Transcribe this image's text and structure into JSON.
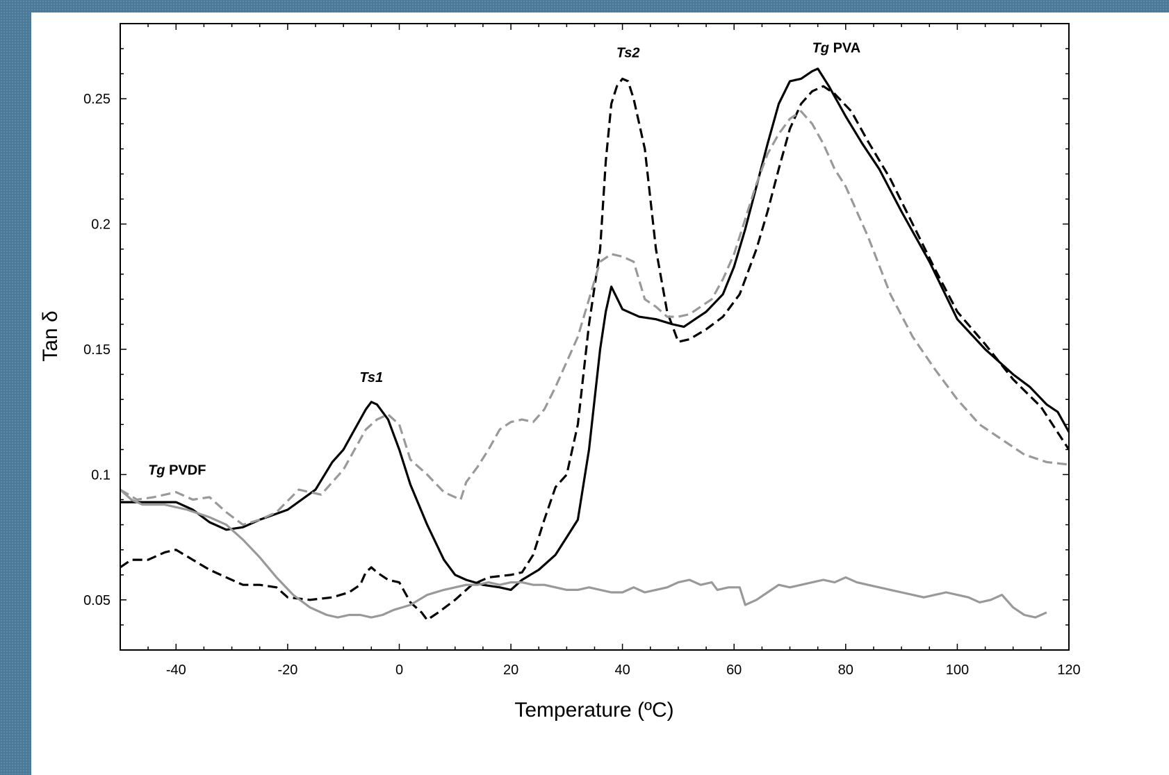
{
  "chart_data": {
    "type": "line",
    "title": "",
    "xlabel": "Temperature (ºC)",
    "ylabel": "Tan δ",
    "xlim": [
      -50,
      120
    ],
    "ylim": [
      0.03,
      0.28
    ],
    "xticks": [
      -40,
      -20,
      0,
      20,
      40,
      60,
      80,
      100,
      120
    ],
    "xtick_labels": [
      "-40",
      "-20",
      "0",
      "20",
      "40",
      "60",
      "80",
      "100",
      "120"
    ],
    "yticks": [
      0.05,
      0.1,
      0.15,
      0.2,
      0.25
    ],
    "ytick_labels": [
      "0.05",
      "0.1",
      "0.15",
      "0.2",
      "0.25"
    ],
    "grid": false,
    "legend": "none",
    "annotations": [
      {
        "italic": "Tg",
        "text": " PVDF",
        "x": -45,
        "y": 0.1
      },
      {
        "italic": "Ts1",
        "text": "",
        "x": -5,
        "y": 0.137
      },
      {
        "italic": "Ts2",
        "text": "",
        "x": 41,
        "y": 0.2665
      },
      {
        "italic": "Tg",
        "text": " PVA",
        "x": 74,
        "y": 0.2685
      }
    ],
    "series": [
      {
        "color": "#000000",
        "dash": "solid",
        "x": [
          -50,
          -45,
          -40,
          -37,
          -34,
          -31,
          -28,
          -25,
          -20,
          -15,
          -12,
          -10,
          -8,
          -6,
          -5,
          -4,
          -2,
          0,
          2,
          5,
          8,
          10,
          12,
          15,
          18,
          20,
          22,
          25,
          28,
          30,
          32,
          34,
          35,
          36,
          37,
          38,
          40,
          43,
          46,
          49,
          51,
          53,
          55,
          58,
          60,
          62,
          64,
          66,
          68,
          70,
          72,
          74,
          75,
          77,
          80,
          83,
          86,
          90,
          95,
          100,
          105,
          110,
          113,
          116,
          118,
          120
        ],
        "values": [
          0.089,
          0.089,
          0.089,
          0.086,
          0.081,
          0.078,
          0.079,
          0.082,
          0.086,
          0.094,
          0.105,
          0.11,
          0.118,
          0.126,
          0.129,
          0.128,
          0.122,
          0.11,
          0.096,
          0.08,
          0.066,
          0.06,
          0.058,
          0.056,
          0.055,
          0.054,
          0.058,
          0.062,
          0.068,
          0.075,
          0.082,
          0.11,
          0.13,
          0.15,
          0.165,
          0.175,
          0.166,
          0.163,
          0.162,
          0.16,
          0.159,
          0.162,
          0.165,
          0.172,
          0.183,
          0.198,
          0.215,
          0.232,
          0.248,
          0.257,
          0.258,
          0.261,
          0.262,
          0.255,
          0.243,
          0.232,
          0.222,
          0.205,
          0.185,
          0.162,
          0.15,
          0.14,
          0.135,
          0.128,
          0.125,
          0.117
        ]
      },
      {
        "color": "#000000",
        "dash": "dashed",
        "x": [
          -50,
          -48,
          -45,
          -42,
          -40,
          -37,
          -34,
          -31,
          -28,
          -25,
          -22,
          -20,
          -16,
          -12,
          -9,
          -7,
          -6,
          -5,
          -4,
          -2,
          0,
          2,
          4,
          5,
          7,
          10,
          13,
          16,
          20,
          22,
          24,
          26,
          28,
          30,
          32,
          34,
          36,
          37,
          38,
          39,
          40,
          41,
          42,
          44,
          46,
          48,
          50,
          52,
          55,
          58,
          61,
          64,
          66,
          68,
          70,
          72,
          74,
          76,
          78,
          81,
          84,
          88,
          92,
          96,
          100,
          105,
          110,
          115,
          120
        ],
        "values": [
          0.063,
          0.066,
          0.066,
          0.069,
          0.07,
          0.066,
          0.062,
          0.059,
          0.056,
          0.056,
          0.055,
          0.051,
          0.05,
          0.051,
          0.053,
          0.056,
          0.061,
          0.063,
          0.061,
          0.058,
          0.057,
          0.049,
          0.045,
          0.042,
          0.045,
          0.05,
          0.056,
          0.059,
          0.06,
          0.061,
          0.068,
          0.082,
          0.095,
          0.1,
          0.12,
          0.16,
          0.19,
          0.225,
          0.248,
          0.255,
          0.258,
          0.257,
          0.25,
          0.23,
          0.19,
          0.165,
          0.153,
          0.154,
          0.158,
          0.163,
          0.172,
          0.19,
          0.205,
          0.222,
          0.238,
          0.248,
          0.253,
          0.255,
          0.252,
          0.245,
          0.233,
          0.218,
          0.2,
          0.182,
          0.165,
          0.152,
          0.138,
          0.127,
          0.11
        ]
      },
      {
        "color": "#999999",
        "dash": "dashed",
        "x": [
          -50,
          -47,
          -44,
          -40,
          -37,
          -34,
          -31,
          -28,
          -25,
          -22,
          -18,
          -14,
          -10,
          -8,
          -6,
          -4,
          -2,
          0,
          2,
          5,
          8,
          10,
          11,
          12,
          14,
          16,
          18,
          20,
          22,
          24,
          26,
          28,
          30,
          32,
          34,
          36,
          38,
          40,
          42,
          44,
          46,
          48,
          50,
          52,
          54,
          56,
          58,
          60,
          62,
          64,
          66,
          68,
          70,
          72,
          74,
          76,
          78,
          80,
          84,
          88,
          92,
          96,
          100,
          104,
          108,
          112,
          116,
          120
        ],
        "values": [
          0.094,
          0.09,
          0.091,
          0.093,
          0.09,
          0.091,
          0.085,
          0.08,
          0.082,
          0.085,
          0.094,
          0.092,
          0.102,
          0.11,
          0.118,
          0.122,
          0.124,
          0.12,
          0.106,
          0.1,
          0.093,
          0.091,
          0.09,
          0.097,
          0.103,
          0.11,
          0.118,
          0.121,
          0.122,
          0.121,
          0.126,
          0.135,
          0.145,
          0.155,
          0.17,
          0.185,
          0.188,
          0.187,
          0.185,
          0.17,
          0.167,
          0.163,
          0.163,
          0.164,
          0.167,
          0.17,
          0.178,
          0.188,
          0.202,
          0.216,
          0.228,
          0.236,
          0.242,
          0.245,
          0.24,
          0.232,
          0.222,
          0.215,
          0.195,
          0.172,
          0.155,
          0.142,
          0.13,
          0.12,
          0.114,
          0.108,
          0.105,
          0.104
        ]
      },
      {
        "color": "#999999",
        "dash": "solid",
        "x": [
          -50,
          -48,
          -46,
          -42,
          -38,
          -34,
          -31,
          -28,
          -25,
          -22,
          -19,
          -16,
          -13,
          -11,
          -9,
          -7,
          -5,
          -3,
          -1,
          2,
          5,
          8,
          10,
          12,
          14,
          16,
          18,
          20,
          22,
          24,
          26,
          28,
          30,
          32,
          34,
          36,
          38,
          40,
          42,
          44,
          46,
          48,
          50,
          52,
          54,
          56,
          57,
          59,
          61,
          62,
          64,
          66,
          68,
          70,
          72,
          74,
          76,
          78,
          80,
          82,
          84,
          86,
          88,
          90,
          92,
          94,
          96,
          98,
          100,
          102,
          104,
          106,
          108,
          110,
          112,
          114,
          116
        ],
        "values": [
          0.094,
          0.09,
          0.088,
          0.088,
          0.086,
          0.083,
          0.08,
          0.074,
          0.067,
          0.059,
          0.052,
          0.047,
          0.044,
          0.043,
          0.044,
          0.044,
          0.043,
          0.044,
          0.046,
          0.048,
          0.052,
          0.054,
          0.055,
          0.056,
          0.056,
          0.057,
          0.056,
          0.057,
          0.057,
          0.056,
          0.056,
          0.055,
          0.054,
          0.054,
          0.055,
          0.054,
          0.053,
          0.053,
          0.055,
          0.053,
          0.054,
          0.055,
          0.057,
          0.058,
          0.056,
          0.057,
          0.054,
          0.055,
          0.055,
          0.048,
          0.05,
          0.053,
          0.056,
          0.055,
          0.056,
          0.057,
          0.058,
          0.057,
          0.059,
          0.057,
          0.056,
          0.055,
          0.054,
          0.053,
          0.052,
          0.051,
          0.052,
          0.053,
          0.052,
          0.051,
          0.049,
          0.05,
          0.052,
          0.047,
          0.044,
          0.043,
          0.045
        ]
      }
    ]
  }
}
